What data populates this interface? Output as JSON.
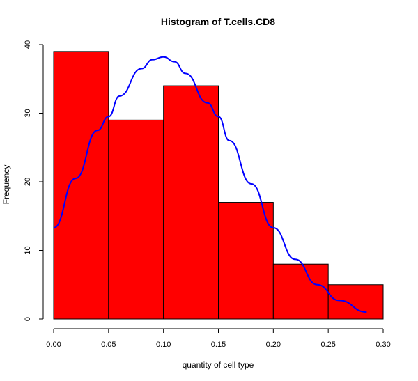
{
  "chart_data": {
    "type": "histogram",
    "title": "Histogram of T.cells.CD8",
    "xlabel": "quantity of cell type",
    "ylabel": "Frequency",
    "bins": [
      {
        "from": 0.0,
        "to": 0.05,
        "count": 39
      },
      {
        "from": 0.05,
        "to": 0.1,
        "count": 29
      },
      {
        "from": 0.1,
        "to": 0.15,
        "count": 34
      },
      {
        "from": 0.15,
        "to": 0.2,
        "count": 17
      },
      {
        "from": 0.2,
        "to": 0.25,
        "count": 8
      },
      {
        "from": 0.25,
        "to": 0.3,
        "count": 5
      }
    ],
    "xlim": [
      0,
      0.3
    ],
    "ylim": [
      0,
      40
    ],
    "x_ticks": [
      "0.00",
      "0.05",
      "0.10",
      "0.15",
      "0.20",
      "0.25",
      "0.30"
    ],
    "x_tick_values": [
      0,
      0.05,
      0.1,
      0.15,
      0.2,
      0.25,
      0.3
    ],
    "y_ticks": [
      "0",
      "10",
      "20",
      "30",
      "40"
    ],
    "y_tick_values": [
      0,
      10,
      20,
      30,
      40
    ],
    "density_curve": {
      "x": [
        0.0,
        0.02,
        0.04,
        0.05,
        0.06,
        0.08,
        0.09,
        0.1,
        0.11,
        0.12,
        0.14,
        0.15,
        0.16,
        0.18,
        0.2,
        0.22,
        0.24,
        0.26,
        0.285
      ],
      "y": [
        13.3,
        20.5,
        27.5,
        29.5,
        32.5,
        36.5,
        37.8,
        38.2,
        37.5,
        35.8,
        31.5,
        29.5,
        26.0,
        19.7,
        13.3,
        8.7,
        5.0,
        2.7,
        1.0
      ]
    },
    "colors": {
      "bar_fill": "#ff0000",
      "bar_stroke": "#000000",
      "curve": "#0000ff",
      "axis": "#000000"
    }
  }
}
